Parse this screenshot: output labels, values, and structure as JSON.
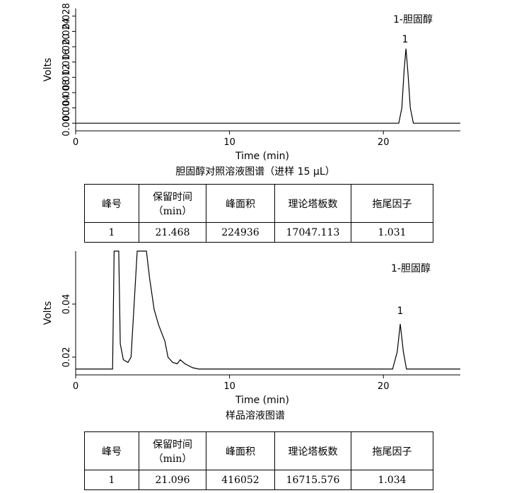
{
  "chart_data": [
    {
      "type": "line",
      "title": "胆固醇对照溶液图谱（进样 15 μL）",
      "xlabel": "Time (min)",
      "ylabel": "Volts",
      "xlim": [
        0,
        25
      ],
      "xticks": [
        0,
        10,
        20
      ],
      "ylim": [
        -0.002,
        0.03
      ],
      "yticks": [
        {
          "value": 0,
          "label": "0.000"
        },
        {
          "value": 0.004,
          "label": "0.004"
        },
        {
          "value": 0.008,
          "label": "0.008"
        },
        {
          "value": 0.012,
          "label": "0.012"
        },
        {
          "value": 0.016,
          "label": "0.016"
        },
        {
          "value": 0.02,
          "label": "0.020"
        },
        {
          "value": 0.024,
          "label": "0.024"
        },
        {
          "value": 0.028,
          "label": "0.028"
        }
      ],
      "annotations": [
        "1-胆固醇",
        "1"
      ],
      "x": [
        0,
        21.0,
        21.2,
        21.35,
        21.468,
        21.6,
        21.75,
        21.95,
        25
      ],
      "series": [
        {
          "name": "signal",
          "color": "#000000",
          "values": [
            0,
            0,
            0.004,
            0.014,
            0.0195,
            0.013,
            0.004,
            0,
            0
          ]
        }
      ]
    },
    {
      "type": "line",
      "title": "样品溶液图谱",
      "xlabel": "Time (min)",
      "ylabel": "Volts",
      "xlim": [
        0,
        25
      ],
      "xticks": [
        0,
        10,
        20
      ],
      "ylim": [
        0.0133,
        0.06
      ],
      "yticks": [
        0.02,
        0.04
      ],
      "annotations": [
        "1-胆固醇",
        "1"
      ],
      "x": [
        0,
        2.4,
        2.5,
        2.8,
        2.9,
        3.1,
        3.4,
        3.6,
        3.9,
        4.0,
        4.6,
        4.8,
        5.1,
        5.4,
        5.6,
        5.8,
        6.0,
        6.3,
        6.6,
        6.8,
        7.1,
        7.6,
        8,
        20.6,
        20.9,
        21.096,
        21.3,
        21.5,
        25
      ],
      "series": [
        {
          "name": "signal",
          "color": "#000000",
          "values": [
            0.0155,
            0.0155,
            0.06,
            0.06,
            0.025,
            0.019,
            0.018,
            0.02,
            0.05,
            0.06,
            0.06,
            0.05,
            0.038,
            0.032,
            0.029,
            0.026,
            0.02,
            0.018,
            0.0175,
            0.019,
            0.0175,
            0.016,
            0.0155,
            0.0155,
            0.022,
            0.0325,
            0.022,
            0.0155,
            0.0155
          ]
        }
      ]
    }
  ],
  "tables": [
    {
      "header": [
        "峰号",
        "保留时间\n（min）",
        "峰面积",
        "理论塔板数",
        "拖尾因子"
      ],
      "rows": [
        [
          "1",
          "21.468",
          "224936",
          "17047.113",
          "1.031"
        ]
      ]
    },
    {
      "header": [
        "峰号",
        "保留时间\n（min）",
        "峰面积",
        "理论塔板数",
        "拖尾因子"
      ],
      "rows": [
        [
          "1",
          "21.096",
          "416052",
          "16715.576",
          "1.034"
        ]
      ]
    }
  ]
}
